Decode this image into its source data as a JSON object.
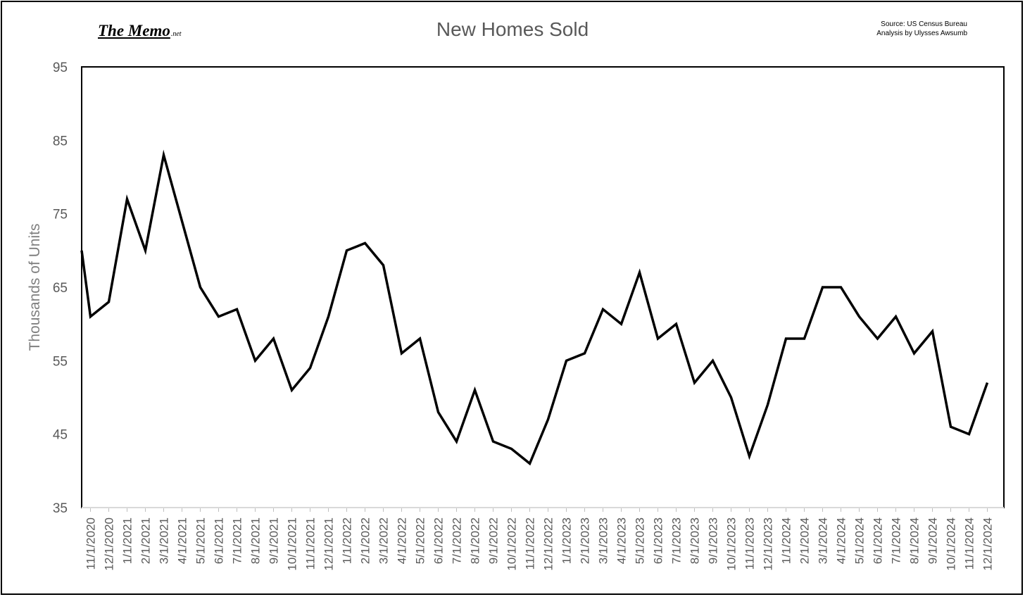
{
  "logo": {
    "main": "The Memo",
    "tld": ".net"
  },
  "source": {
    "line1": "Source: US Census Bureau",
    "line2": "Analysis by Ulysses Awsumb"
  },
  "chart_data": {
    "type": "line",
    "title": "New Homes Sold",
    "xlabel": "",
    "ylabel": "Thousands of Units",
    "ylim": [
      35,
      95
    ],
    "yticks": [
      35,
      45,
      55,
      65,
      75,
      85,
      95
    ],
    "grid": false,
    "legend": "none",
    "line_color": "#000000",
    "x": [
      "11/1/2020",
      "12/1/2020",
      "1/1/2021",
      "2/1/2021",
      "3/1/2021",
      "4/1/2021",
      "5/1/2021",
      "6/1/2021",
      "7/1/2021",
      "8/1/2021",
      "9/1/2021",
      "10/1/2021",
      "11/1/2021",
      "12/1/2021",
      "1/1/2022",
      "2/1/2022",
      "3/1/2022",
      "4/1/2022",
      "5/1/2022",
      "6/1/2022",
      "7/1/2022",
      "8/1/2022",
      "9/1/2022",
      "10/1/2022",
      "11/1/2022",
      "12/1/2022",
      "1/1/2023",
      "2/1/2023",
      "3/1/2023",
      "4/1/2023",
      "5/1/2023",
      "6/1/2023",
      "7/1/2023",
      "8/1/2023",
      "9/1/2023",
      "10/1/2023",
      "11/1/2023",
      "12/1/2023",
      "1/1/2024",
      "2/1/2024",
      "3/1/2024",
      "4/1/2024",
      "5/1/2024",
      "6/1/2024",
      "7/1/2024",
      "8/1/2024",
      "9/1/2024",
      "10/1/2024",
      "11/1/2024",
      "12/1/2024"
    ],
    "series": [
      {
        "values": [
          61,
          63,
          77,
          70,
          83,
          74,
          65,
          61,
          62,
          55,
          58,
          51,
          54,
          61,
          70,
          71,
          68,
          56,
          58,
          48,
          44,
          51,
          44,
          43,
          41,
          47,
          55,
          56,
          62,
          60,
          67,
          58,
          60,
          52,
          55,
          50,
          42,
          49,
          58,
          58,
          65,
          65,
          61,
          58,
          61,
          56,
          59,
          46,
          45,
          52
        ],
        "start_value": 70
      }
    ]
  }
}
